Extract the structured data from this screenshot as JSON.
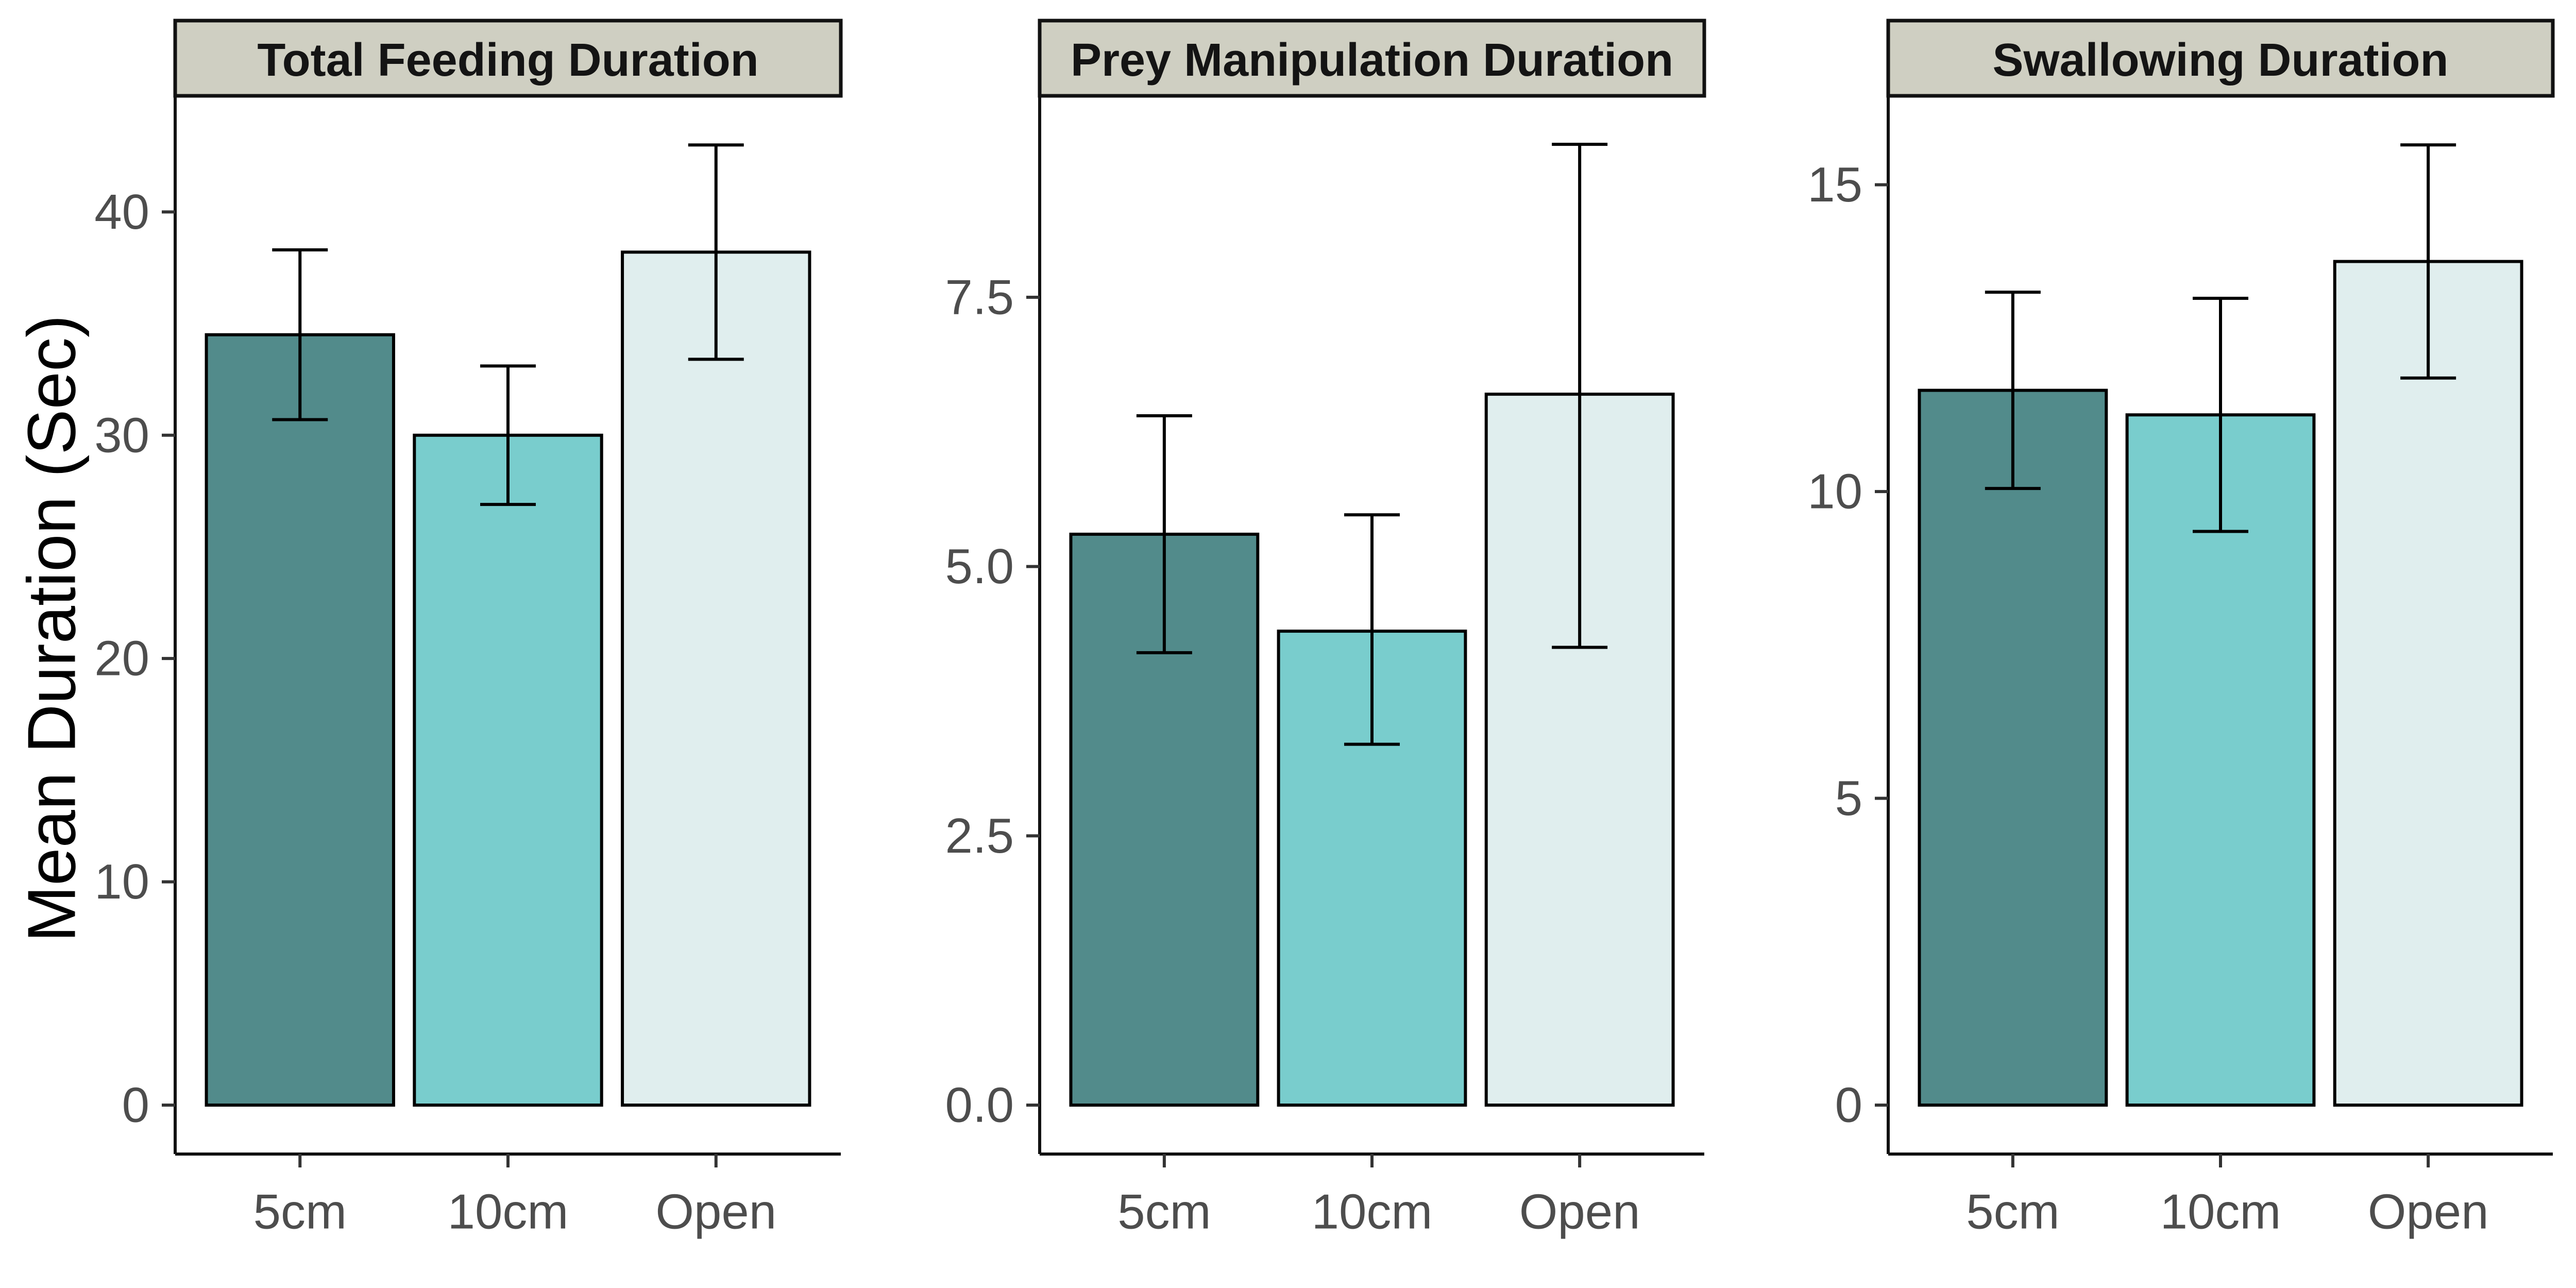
{
  "ylabel": "Mean Duration (Sec)",
  "colors": {
    "5cm": "#528b8b",
    "10cm": "#79cdcd",
    "Open": "#e0eeee",
    "strip": "#cfcfc2"
  },
  "chart_data": [
    {
      "type": "bar",
      "title": "Total Feeding Duration",
      "categories": [
        "5cm",
        "10cm",
        "Open"
      ],
      "values": [
        34.5,
        30.0,
        38.2
      ],
      "error_low": [
        30.7,
        26.9,
        33.4
      ],
      "error_high": [
        38.3,
        33.1,
        43.0
      ],
      "yticks": [
        0,
        10,
        20,
        30,
        40
      ],
      "ytick_labels": [
        "0",
        "10",
        "20",
        "30",
        "40"
      ],
      "ylim": [
        0,
        45.2
      ]
    },
    {
      "type": "bar",
      "title": "Prey Manipulation Duration",
      "categories": [
        "5cm",
        "10cm",
        "Open"
      ],
      "values": [
        5.3,
        4.4,
        6.6
      ],
      "error_low": [
        4.2,
        3.35,
        4.25
      ],
      "error_high": [
        6.4,
        5.48,
        8.92
      ],
      "yticks": [
        0,
        2.5,
        5,
        7.5
      ],
      "ytick_labels": [
        "0.0",
        "2.5",
        "5.0",
        "7.5"
      ],
      "ylim": [
        0,
        9.37
      ]
    },
    {
      "type": "bar",
      "title": "Swallowing Duration",
      "categories": [
        "5cm",
        "10cm",
        "Open"
      ],
      "values": [
        11.65,
        11.25,
        13.75
      ],
      "error_low": [
        10.05,
        9.35,
        11.85
      ],
      "error_high": [
        13.25,
        13.15,
        15.65
      ],
      "yticks": [
        0,
        5,
        10,
        15
      ],
      "ytick_labels": [
        "0",
        "5",
        "10",
        "15"
      ],
      "ylim": [
        0,
        16.45
      ]
    }
  ]
}
